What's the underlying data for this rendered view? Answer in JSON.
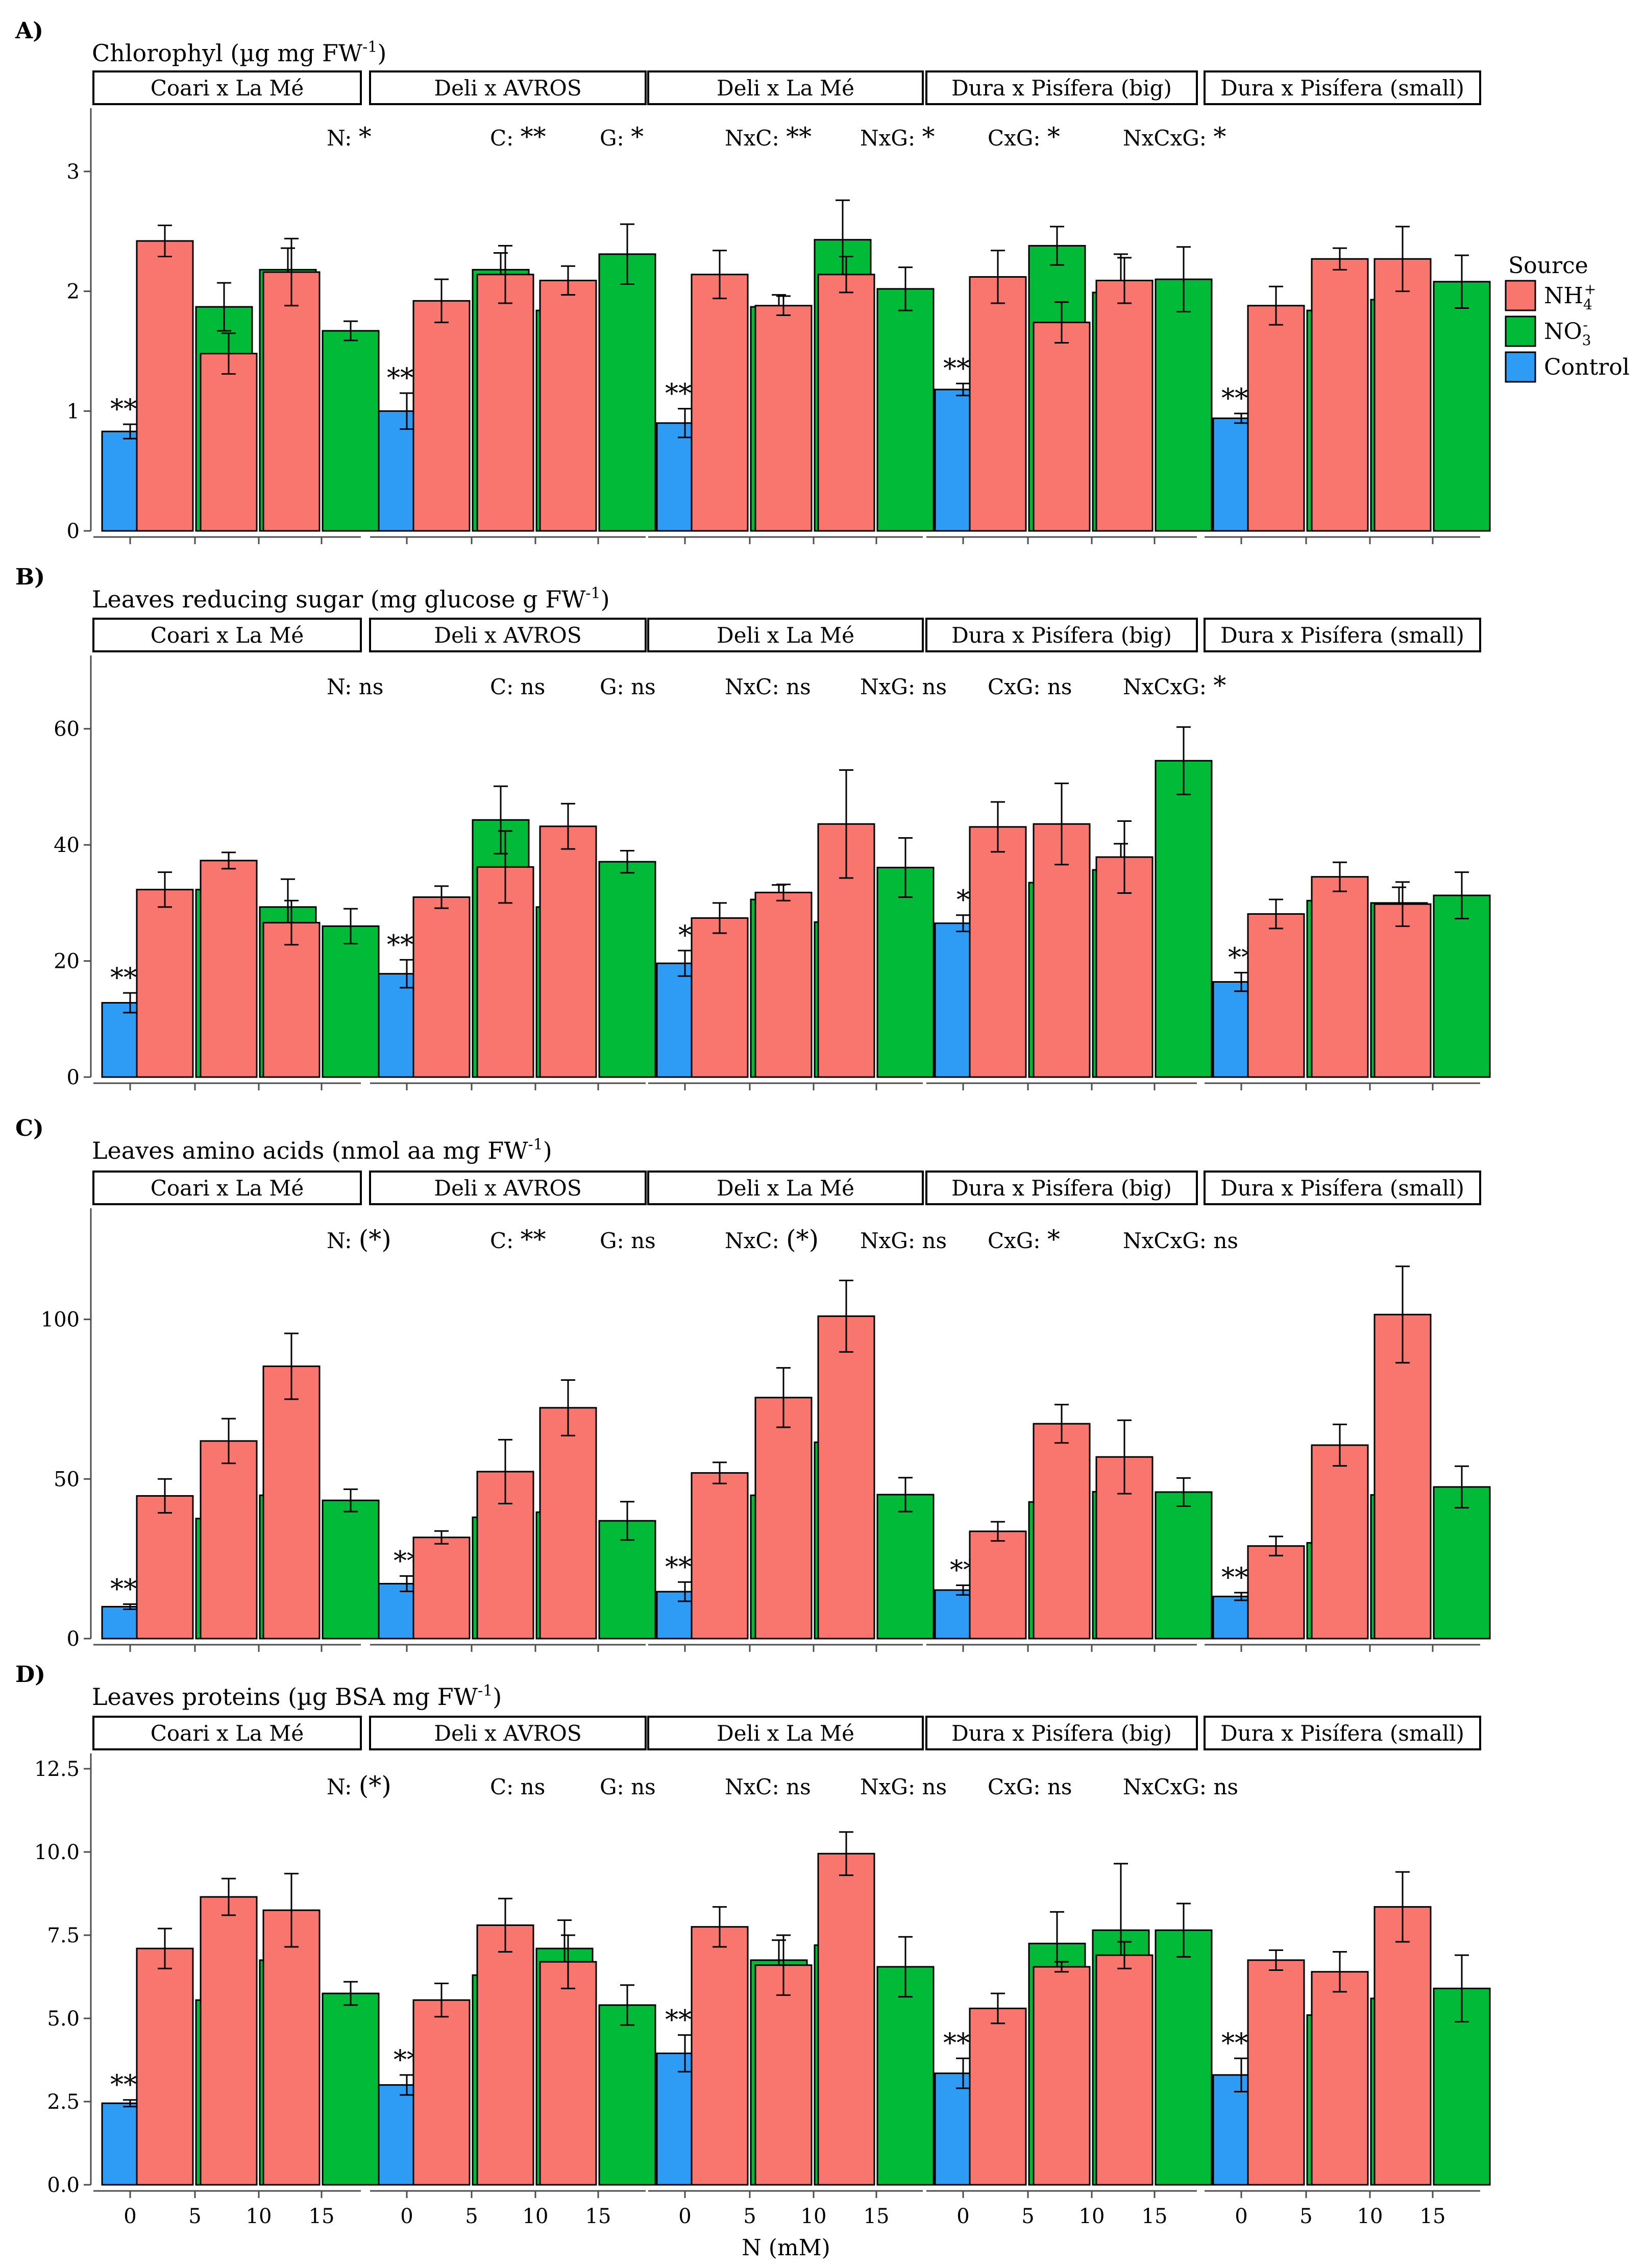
{
  "colors": {
    "nh4": "#F8766D",
    "no3": "#00BA38",
    "control": "#2E9BF5",
    "axis": "#4D4D4D"
  },
  "legend": {
    "title": "Source",
    "entries": [
      {
        "key": "nh4",
        "base": "NH",
        "sub": "4",
        "sup": "+"
      },
      {
        "key": "no3",
        "base": "NO",
        "sub": "3",
        "sup": "-"
      },
      {
        "key": "control",
        "base": "Control",
        "sub": "",
        "sup": ""
      }
    ]
  },
  "x_axis": {
    "label": "N (mM)",
    "ticks": [
      "0",
      "5",
      "10",
      "15"
    ]
  },
  "chart_data": [
    {
      "type": "bar",
      "panel": "A)",
      "title": "Chlorophyl (µg mg FW",
      "title_sup": "-1",
      "title_end": ")",
      "ylim": [
        0,
        3.4
      ],
      "yticks": [
        "0",
        "1",
        "2",
        "3"
      ],
      "ytick_values": [
        0,
        1,
        2,
        3
      ],
      "stats": [
        {
          "label": "N:",
          "sig": "*"
        },
        {
          "label": "C:",
          "sig": "**"
        },
        {
          "label": "G:",
          "sig": "*"
        },
        {
          "label": "NxC:",
          "sig": "**"
        },
        {
          "label": "NxG:",
          "sig": "*"
        },
        {
          "label": "CxG:",
          "sig": "*"
        },
        {
          "label": "NxCxG:",
          "sig": "*"
        }
      ],
      "groups": [
        {
          "name": "Coari x La Mé",
          "control": 0.83,
          "control_err": 0.06,
          "control_sig": "***",
          "nh4": [
            2.42,
            1.48,
            2.16
          ],
          "nh4_err": [
            0.13,
            0.17,
            0.28
          ],
          "no3": [
            1.87,
            2.18,
            1.67
          ],
          "no3_err": [
            0.2,
            0.18,
            0.08
          ]
        },
        {
          "name": "Deli x AVROS",
          "control": 1.0,
          "control_err": 0.15,
          "control_sig": "***",
          "nh4": [
            1.92,
            2.14,
            2.09
          ],
          "nh4_err": [
            0.18,
            0.24,
            0.12
          ],
          "no3": [
            2.18,
            1.84,
            2.31
          ],
          "no3_err": [
            0.14,
            0.25,
            0.25
          ]
        },
        {
          "name": "Deli x La Mé",
          "control": 0.9,
          "control_err": 0.12,
          "control_sig": "***",
          "nh4": [
            2.14,
            1.88,
            2.14
          ],
          "nh4_err": [
            0.2,
            0.08,
            0.15
          ],
          "no3": [
            1.87,
            2.43,
            2.02
          ],
          "no3_err": [
            0.1,
            0.33,
            0.18
          ]
        },
        {
          "name": "Dura x Pisífera (big)",
          "control": 1.18,
          "control_err": 0.05,
          "control_sig": "***",
          "nh4": [
            2.12,
            1.74,
            2.09
          ],
          "nh4_err": [
            0.22,
            0.17,
            0.19
          ],
          "no3": [
            2.38,
            1.99,
            2.1
          ],
          "no3_err": [
            0.16,
            0.32,
            0.27
          ]
        },
        {
          "name": "Dura x Pisífera (small)",
          "control": 0.94,
          "control_err": 0.04,
          "control_sig": "***",
          "nh4": [
            1.88,
            2.27,
            2.27
          ],
          "nh4_err": [
            0.16,
            0.09,
            0.27
          ],
          "no3": [
            1.84,
            1.93,
            2.08
          ],
          "no3_err": [
            0.16,
            0.18,
            0.22
          ]
        }
      ]
    },
    {
      "type": "bar",
      "panel": "B)",
      "title": "Leaves reducing sugar (mg glucose g FW",
      "title_sup": "-1",
      "title_end": ")",
      "ylim": [
        0,
        70
      ],
      "yticks": [
        "0",
        "20",
        "40",
        "60"
      ],
      "ytick_values": [
        0,
        20,
        40,
        60
      ],
      "stats": [
        {
          "label": "N:",
          "sig": "ns"
        },
        {
          "label": "C:",
          "sig": "ns"
        },
        {
          "label": "G:",
          "sig": "ns"
        },
        {
          "label": "NxC:",
          "sig": "ns"
        },
        {
          "label": "NxG:",
          "sig": "ns"
        },
        {
          "label": "CxG:",
          "sig": "ns"
        },
        {
          "label": "NxCxG:",
          "sig": "*"
        }
      ],
      "groups": [
        {
          "name": "Coari x La Mé",
          "control": 12.8,
          "control_err": 1.7,
          "control_sig": "***",
          "nh4": [
            32.3,
            37.3,
            26.6
          ],
          "nh4_err": [
            3.0,
            1.4,
            3.8
          ],
          "no3": [
            32.3,
            29.3,
            26.0
          ],
          "no3_err": [
            4.3,
            4.8,
            3.0
          ]
        },
        {
          "name": "Deli x AVROS",
          "control": 17.8,
          "control_err": 2.4,
          "control_sig": "***",
          "nh4": [
            31.0,
            36.2,
            43.2
          ],
          "nh4_err": [
            1.9,
            6.2,
            3.9
          ],
          "no3": [
            44.3,
            29.3,
            37.1
          ],
          "no3_err": [
            5.8,
            4.1,
            1.9
          ]
        },
        {
          "name": "Deli x La Mé",
          "control": 19.6,
          "control_err": 2.2,
          "control_sig": "*",
          "nh4": [
            27.4,
            31.8,
            43.6
          ],
          "nh4_err": [
            2.6,
            1.4,
            9.3
          ],
          "no3": [
            30.6,
            26.7,
            36.1
          ],
          "no3_err": [
            2.5,
            3.6,
            5.1
          ]
        },
        {
          "name": "Dura x Pisífera (big)",
          "control": 26.5,
          "control_err": 1.4,
          "control_sig": "*",
          "nh4": [
            43.1,
            43.6,
            37.9
          ],
          "nh4_err": [
            4.3,
            7.0,
            6.2
          ],
          "no3": [
            33.5,
            35.7,
            54.5
          ],
          "no3_err": [
            3.8,
            4.5,
            5.8
          ]
        },
        {
          "name": "Dura x Pisífera (small)",
          "control": 16.4,
          "control_err": 1.6,
          "control_sig": "**",
          "nh4": [
            28.1,
            34.5,
            29.8
          ],
          "nh4_err": [
            2.5,
            2.5,
            3.8
          ],
          "no3": [
            30.4,
            30.0,
            31.3
          ],
          "no3_err": [
            3.2,
            2.7,
            4.0
          ]
        }
      ]
    },
    {
      "type": "bar",
      "panel": "C)",
      "title": "Leaves amino acids (nmol aa mg FW",
      "title_sup": "-1",
      "title_end": ")",
      "ylim": [
        0,
        130
      ],
      "yticks": [
        "0",
        "50",
        "100"
      ],
      "ytick_values": [
        0,
        50,
        100
      ],
      "stats": [
        {
          "label": "N:",
          "sig": "(*)"
        },
        {
          "label": "C:",
          "sig": "**"
        },
        {
          "label": "G:",
          "sig": "ns"
        },
        {
          "label": "NxC:",
          "sig": "(*)"
        },
        {
          "label": "NxG:",
          "sig": "ns"
        },
        {
          "label": "CxG:",
          "sig": "*"
        },
        {
          "label": "NxCxG:",
          "sig": "ns"
        }
      ],
      "groups": [
        {
          "name": "Coari x La Mé",
          "control": 10.0,
          "control_err": 0.8,
          "control_sig": "***",
          "nh4": [
            44.7,
            61.9,
            85.3
          ],
          "nh4_err": [
            5.3,
            7.0,
            10.3
          ],
          "no3": [
            37.6,
            44.9,
            43.3
          ],
          "no3_err": [
            4.0,
            3.0,
            3.5
          ]
        },
        {
          "name": "Deli x AVROS",
          "control": 17.2,
          "control_err": 2.4,
          "control_sig": "**",
          "nh4": [
            31.7,
            52.3,
            72.3
          ],
          "nh4_err": [
            2.0,
            10.0,
            8.7
          ],
          "no3": [
            38.0,
            39.6,
            36.9
          ],
          "no3_err": [
            4.0,
            6.0,
            6.0
          ]
        },
        {
          "name": "Deli x La Mé",
          "control": 14.7,
          "control_err": 3.0,
          "control_sig": "***",
          "nh4": [
            51.9,
            75.5,
            101.0
          ],
          "nh4_err": [
            3.3,
            9.3,
            11.2
          ],
          "no3": [
            44.9,
            61.5,
            45.1
          ],
          "no3_err": [
            4.7,
            11.2,
            5.3
          ]
        },
        {
          "name": "Dura x Pisífera (big)",
          "control": 15.2,
          "control_err": 1.5,
          "control_sig": "**",
          "nh4": [
            33.6,
            67.3,
            56.9
          ],
          "nh4_err": [
            3.0,
            6.0,
            11.5
          ],
          "no3": [
            42.8,
            46.0,
            45.9
          ],
          "no3_err": [
            6.0,
            4.0,
            4.4
          ]
        },
        {
          "name": "Dura x Pisífera (small)",
          "control": 13.2,
          "control_err": 1.2,
          "control_sig": "***",
          "nh4": [
            29.0,
            60.6,
            101.5
          ],
          "nh4_err": [
            3.0,
            6.5,
            15.1
          ],
          "no3": [
            30.0,
            45.0,
            47.5
          ],
          "no3_err": [
            3.3,
            11.0,
            6.5
          ]
        }
      ]
    },
    {
      "type": "bar",
      "panel": "D)",
      "title": "Leaves proteins (µg BSA mg FW",
      "title_sup": "-1",
      "title_end": ")",
      "ylim": [
        0,
        12.5
      ],
      "yticks": [
        "0.0",
        "2.5",
        "5.0",
        "7.5",
        "10.0",
        "12.5"
      ],
      "ytick_values": [
        0,
        2.5,
        5,
        7.5,
        10,
        12.5
      ],
      "stats": [
        {
          "label": "N:",
          "sig": "(*)"
        },
        {
          "label": "C:",
          "sig": "ns"
        },
        {
          "label": "G:",
          "sig": "ns"
        },
        {
          "label": "NxC:",
          "sig": "ns"
        },
        {
          "label": "NxG:",
          "sig": "ns"
        },
        {
          "label": "CxG:",
          "sig": "ns"
        },
        {
          "label": "NxCxG:",
          "sig": "ns"
        }
      ],
      "groups": [
        {
          "name": "Coari x La Mé",
          "control": 2.45,
          "control_err": 0.1,
          "control_sig": "***",
          "nh4": [
            7.1,
            8.65,
            8.25
          ],
          "nh4_err": [
            0.6,
            0.55,
            1.1
          ],
          "no3": [
            5.55,
            6.75,
            5.75
          ],
          "no3_err": [
            0.12,
            0.85,
            0.35
          ]
        },
        {
          "name": "Deli x AVROS",
          "control": 3.0,
          "control_err": 0.3,
          "control_sig": "**",
          "nh4": [
            5.55,
            7.8,
            6.7
          ],
          "nh4_err": [
            0.5,
            0.8,
            0.8
          ],
          "no3": [
            6.3,
            7.1,
            5.4
          ],
          "no3_err": [
            0.75,
            0.85,
            0.6
          ]
        },
        {
          "name": "Deli x La Mé",
          "control": 3.95,
          "control_err": 0.55,
          "control_sig": "***",
          "nh4": [
            7.75,
            6.6,
            9.95
          ],
          "nh4_err": [
            0.6,
            0.9,
            0.65
          ],
          "no3": [
            6.75,
            7.2,
            6.55
          ],
          "no3_err": [
            0.6,
            1.5,
            0.9
          ]
        },
        {
          "name": "Dura x Pisífera (big)",
          "control": 3.35,
          "control_err": 0.45,
          "control_sig": "***",
          "nh4": [
            5.3,
            6.55,
            6.9
          ],
          "nh4_err": [
            0.45,
            0.15,
            0.4
          ],
          "no3": [
            7.25,
            7.65,
            7.65
          ],
          "no3_err": [
            0.95,
            2.0,
            0.8
          ]
        },
        {
          "name": "Dura x Pisífera (small)",
          "control": 3.3,
          "control_err": 0.5,
          "control_sig": "***",
          "nh4": [
            6.75,
            6.4,
            8.35
          ],
          "nh4_err": [
            0.3,
            0.6,
            1.05
          ],
          "no3": [
            5.1,
            5.6,
            5.9
          ],
          "no3_err": [
            0.45,
            0.55,
            1.0
          ]
        }
      ]
    }
  ]
}
